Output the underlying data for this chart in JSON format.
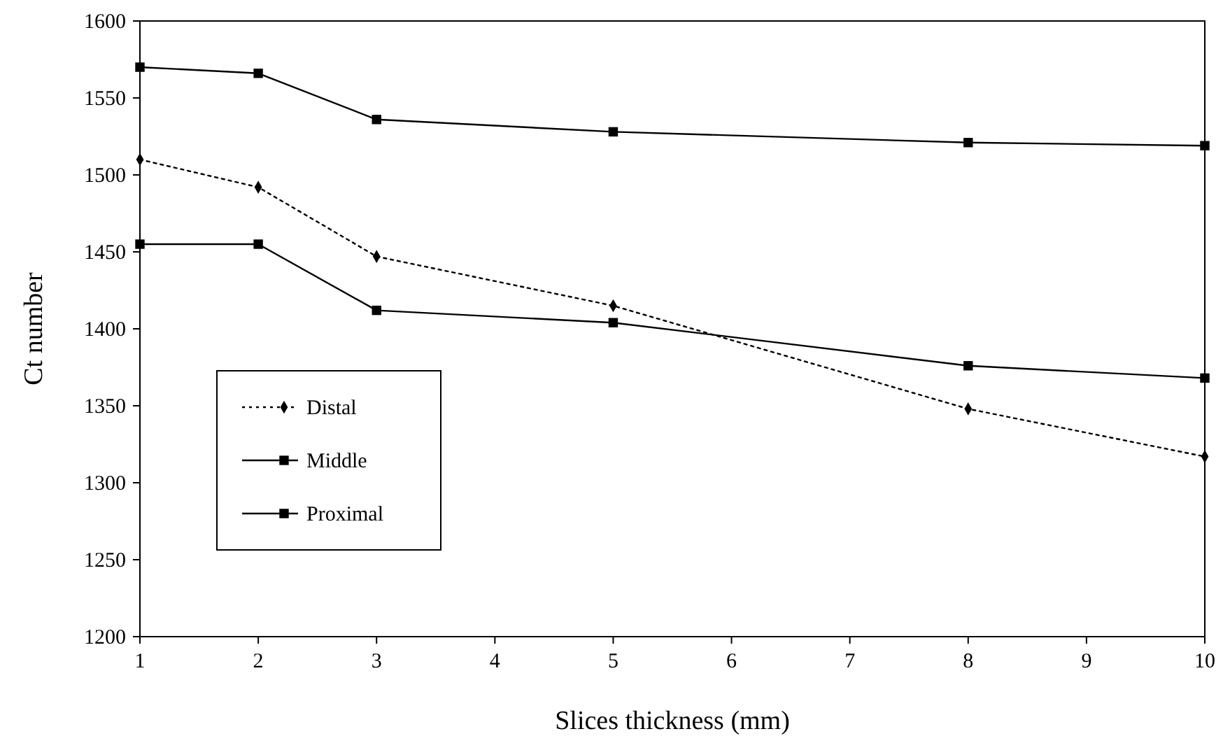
{
  "chart_data": {
    "type": "line",
    "xlabel": "Slices thickness (mm)",
    "ylabel": "Ct number",
    "x": [
      1,
      2,
      3,
      5,
      8,
      10
    ],
    "series": [
      {
        "name": "Distal",
        "color": "#000000",
        "values": [
          1510,
          1492,
          1447,
          1415,
          1348,
          1317
        ],
        "marker": "diamond",
        "line_style": "dotted"
      },
      {
        "name": "Middle",
        "color": "#000000",
        "values": [
          1455,
          1455,
          1412,
          1404,
          1376,
          1368
        ],
        "marker": "square",
        "line_style": "solid"
      },
      {
        "name": "Proximal",
        "color": "#000000",
        "values": [
          1570,
          1566,
          1536,
          1528,
          1521,
          1519
        ],
        "marker": "square",
        "line_style": "solid"
      }
    ],
    "xlim": [
      1,
      10
    ],
    "xticks": [
      1,
      2,
      3,
      4,
      5,
      6,
      7,
      8,
      9,
      10
    ],
    "ylim": [
      1200,
      1600
    ],
    "yticks": [
      1200,
      1250,
      1300,
      1350,
      1400,
      1450,
      1500,
      1550,
      1600
    ],
    "grid": false,
    "legend": "left"
  }
}
